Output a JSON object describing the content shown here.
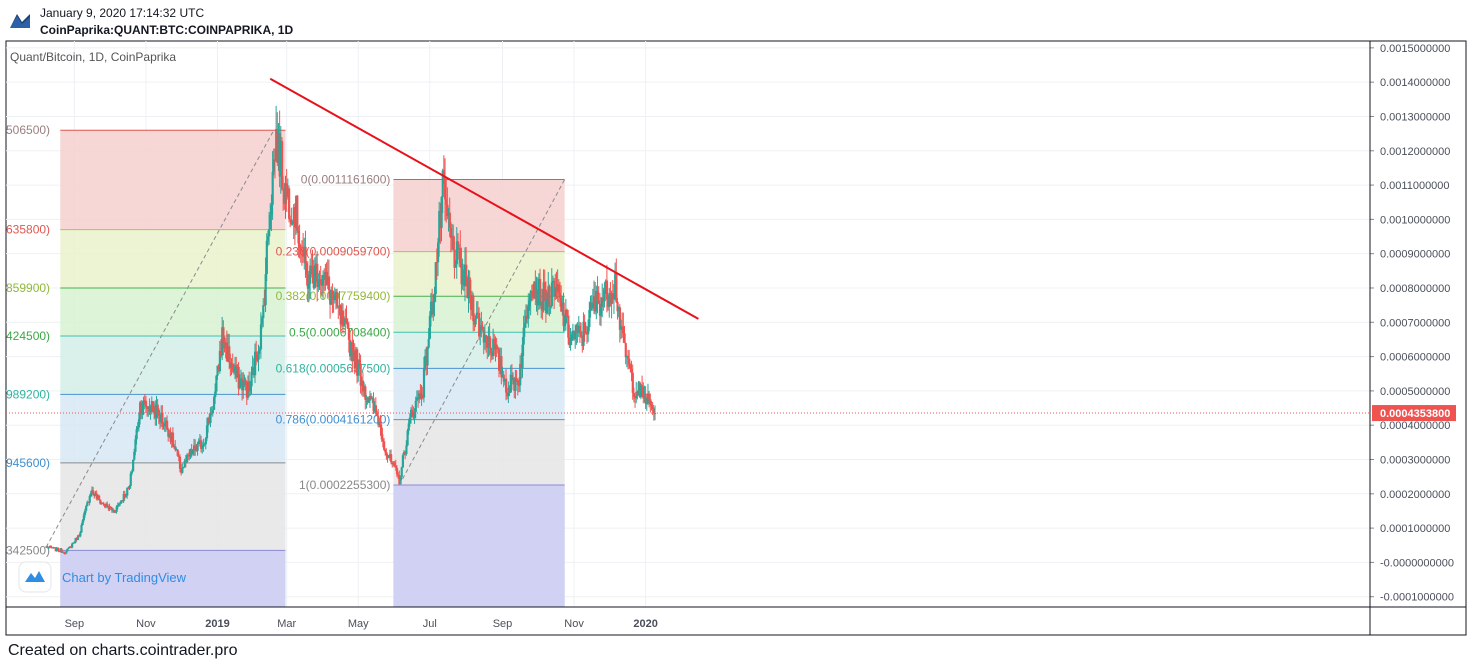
{
  "header": {
    "date": "January 9, 2020 17:14:32 UTC",
    "symbol": "CoinPaprika:QUANT:BTC:COINPAPRIKA, 1D"
  },
  "legend_title": "Quant/Bitcoin, 1D, CoinPaprika",
  "watermark": "Chart by TradingView",
  "footer": "Created on charts.cointrader.pro",
  "last_price_label": "0.0004353800",
  "colors": {
    "up": "#26a69a",
    "down": "#ef5350",
    "trendline": "#e8111a",
    "price_line": "#ef5350"
  },
  "chart_data": {
    "type": "candlestick",
    "title": "Quant/Bitcoin, 1D, CoinPaprika",
    "x_tick_labels": [
      "Sep",
      "Nov",
      "2019",
      "Mar",
      "May",
      "Jul",
      "Sep",
      "Nov",
      "2020"
    ],
    "y_tick_labels": [
      "0.0015000000",
      "0.0014000000",
      "0.0013000000",
      "0.0012000000",
      "0.0011000000",
      "0.0010000000",
      "0.0009000000",
      "0.0008000000",
      "0.0007000000",
      "0.0006000000",
      "0.0005000000",
      "0.0004000000",
      "0.0003000000",
      "0.0002000000",
      "0.0001000000",
      "-0.0000000000",
      "-0.0001000000"
    ],
    "ylim": [
      -0.00013,
      0.00152
    ],
    "last_price": 0.00043538,
    "fib_retracement_1": {
      "labels": [
        "506500)",
        "635800)",
        "859900)",
        "424500)",
        "989200)",
        "945600)",
        "342500)"
      ],
      "levels": [
        0.00126,
        0.00097,
        0.0008,
        0.00066,
        0.00049,
        0.00029,
        3.5e-05
      ]
    },
    "fib_retracement_2": {
      "labels": [
        "0(0.0011161600)",
        "0.236(0.0009059700)",
        "0.382(0.0007759400)",
        "0.5(0.0006708400)",
        "0.618(0.0005657500)",
        "0.786(0.0004161200)",
        "1(0.0002255300)"
      ],
      "levels": [
        0.00111616,
        0.00090597,
        0.00077594,
        0.00067084,
        0.00056575,
        0.00041612,
        0.00022553
      ]
    },
    "trendline": {
      "from": [
        "2019-02-15",
        0.00141
      ],
      "to": [
        "2020-02-15",
        0.00071
      ]
    },
    "close_series": {
      "start": "2018-08-08",
      "step_days": 1,
      "anchors": [
        [
          "2018-08-08",
          4.5e-05
        ],
        [
          "2018-08-25",
          3e-05
        ],
        [
          "2018-09-05",
          8e-05
        ],
        [
          "2018-09-15",
          0.00021
        ],
        [
          "2018-09-25",
          0.00017
        ],
        [
          "2018-10-05",
          0.00015
        ],
        [
          "2018-10-18",
          0.00022
        ],
        [
          "2018-10-27",
          0.00046
        ],
        [
          "2018-11-08",
          0.00045
        ],
        [
          "2018-11-20",
          0.00039
        ],
        [
          "2018-12-01",
          0.00027
        ],
        [
          "2018-12-10",
          0.00032
        ],
        [
          "2018-12-20",
          0.00035
        ],
        [
          "2018-12-30",
          0.00049
        ],
        [
          "2019-01-05",
          0.00066
        ],
        [
          "2019-01-15",
          0.00055
        ],
        [
          "2019-01-28",
          0.0005
        ],
        [
          "2019-02-08",
          0.00069
        ],
        [
          "2019-02-14",
          0.00101
        ],
        [
          "2019-02-20",
          0.00124
        ],
        [
          "2019-02-28",
          0.00108
        ],
        [
          "2019-03-08",
          0.00103
        ],
        [
          "2019-03-18",
          0.00083
        ],
        [
          "2019-03-28",
          0.00085
        ],
        [
          "2019-04-08",
          0.00078
        ],
        [
          "2019-04-18",
          0.00069
        ],
        [
          "2019-04-28",
          0.0006
        ],
        [
          "2019-05-08",
          0.00049
        ],
        [
          "2019-05-18",
          0.00042
        ],
        [
          "2019-05-25",
          0.00032
        ],
        [
          "2019-06-05",
          0.00024
        ],
        [
          "2019-06-15",
          0.00043
        ],
        [
          "2019-06-25",
          0.00051
        ],
        [
          "2019-07-05",
          0.00082
        ],
        [
          "2019-07-12",
          0.00108
        ],
        [
          "2019-07-20",
          0.00092
        ],
        [
          "2019-08-01",
          0.00081
        ],
        [
          "2019-08-12",
          0.00069
        ],
        [
          "2019-08-25",
          0.00062
        ],
        [
          "2019-09-05",
          0.00051
        ],
        [
          "2019-09-15",
          0.00054
        ],
        [
          "2019-09-25",
          0.00083
        ],
        [
          "2019-10-05",
          0.00077
        ],
        [
          "2019-10-18",
          0.00078
        ],
        [
          "2019-10-28",
          0.00066
        ],
        [
          "2019-11-08",
          0.00066
        ],
        [
          "2019-11-18",
          0.00075
        ],
        [
          "2019-11-28",
          0.00078
        ],
        [
          "2019-12-06",
          0.00082
        ],
        [
          "2019-12-12",
          0.00065
        ],
        [
          "2019-12-22",
          0.00051
        ],
        [
          "2020-01-01",
          0.00048
        ],
        [
          "2020-01-09",
          0.00043538
        ]
      ]
    }
  }
}
